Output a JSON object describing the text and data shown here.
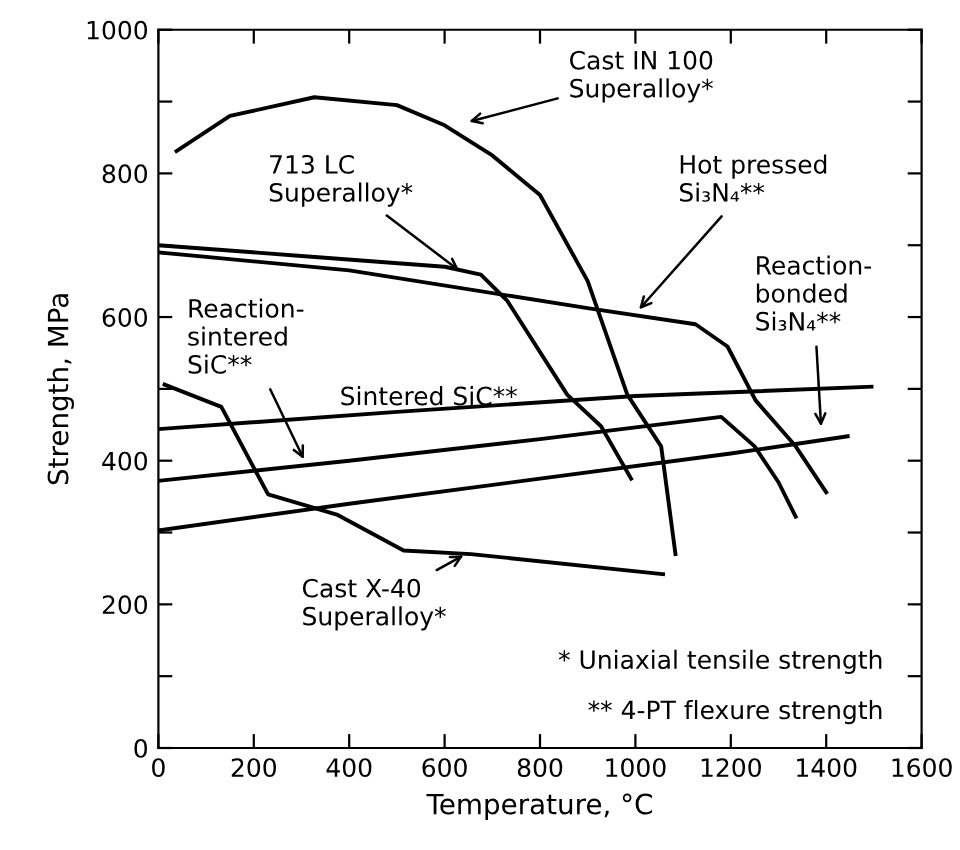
{
  "chart_data": {
    "type": "line",
    "xlabel": "Temperature, °C",
    "ylabel": "Strength, MPa",
    "xlim": [
      0,
      1600
    ],
    "ylim": [
      0,
      1000
    ],
    "xticks": [
      0,
      200,
      400,
      600,
      800,
      1000,
      1200,
      1400,
      1600
    ],
    "yticks": [
      0,
      {
        "value": 100,
        "label": null
      },
      200,
      {
        "value": 300,
        "label": null
      },
      400,
      {
        "value": 500,
        "label": null
      },
      600,
      {
        "value": 700,
        "label": null
      },
      800,
      {
        "value": 900,
        "label": null
      },
      1000
    ],
    "grid": false,
    "legend": "top",
    "marker": "none",
    "line_style": "solid",
    "series": [
      {
        "name": "Cast IN 100\nSuperalloy*",
        "color": "#000000",
        "x": [
          38,
          150,
          327,
          500,
          600,
          700,
          800,
          900,
          983,
          1054,
          1084
        ],
        "values": [
          831,
          880,
          906,
          895,
          867,
          825,
          770,
          650,
          492,
          420,
          270
        ]
      },
      {
        "name": "713 LC\nSuperalloy*",
        "color": "#000000",
        "x": [
          0,
          300,
          600,
          676,
          731,
          857,
          928,
          991
        ],
        "values": [
          700,
          685,
          670,
          659,
          623,
          492,
          448,
          375
        ]
      },
      {
        "name": "Hot pressed\nSi₃N₄**",
        "color": "#000000",
        "x": [
          0,
          400,
          903,
          1126,
          1193,
          1252,
          1336,
          1400
        ],
        "values": [
          690,
          665,
          612,
          590,
          559,
          484,
          420,
          356
        ]
      },
      {
        "name": "Reaction-\nbonded\nSi₃N₄**",
        "color": "#000000",
        "x": [
          0,
          400,
          800,
          1200,
          1445
        ],
        "values": [
          303,
          340,
          375,
          410,
          434
        ]
      },
      {
        "name": "Reaction-\nsintered\nSiC**",
        "color": "#000000",
        "x": [
          0,
          400,
          800,
          1180,
          1250,
          1300,
          1336
        ],
        "values": [
          372,
          400,
          430,
          461,
          420,
          370,
          322
        ]
      },
      {
        "name": "Sintered SiC**",
        "color": "#000000",
        "x": [
          0,
          500,
          1000,
          1495
        ],
        "values": [
          444,
          468,
          490,
          503
        ]
      },
      {
        "name": "Cast X-40\nSuperalloy*",
        "color": "#000000",
        "x": [
          13,
          132,
          230,
          374,
          514,
          655,
          1058
        ],
        "values": [
          506,
          475,
          353,
          325,
          275,
          270,
          242
        ]
      }
    ],
    "annotations": [
      "* Uniaxial tensile strength",
      "** 4-PT flexure strength"
    ]
  }
}
